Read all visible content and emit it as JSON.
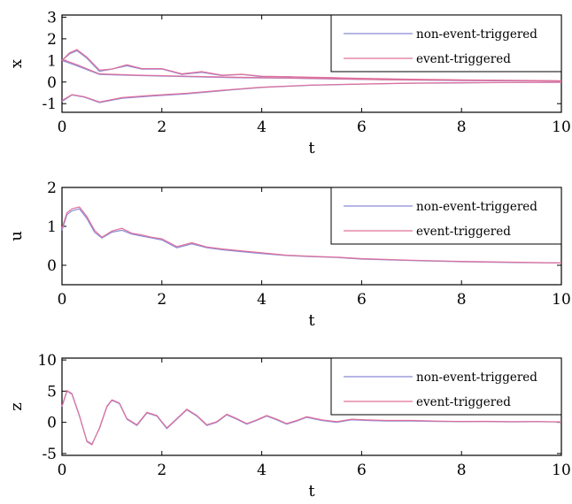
{
  "chart_data": [
    {
      "type": "line",
      "id": "x-plot",
      "xlabel": "t",
      "ylabel": "x",
      "xlim": [
        0,
        10
      ],
      "ylim": [
        -1.4,
        3.1
      ],
      "xticks": [
        "0",
        "2",
        "4",
        "6",
        "8",
        "10"
      ],
      "yticks": [
        "-1",
        "0",
        "1",
        "2",
        "3"
      ],
      "xtick_values": [
        0,
        2,
        4,
        6,
        8,
        10
      ],
      "ytick_values": [
        -1,
        0,
        1,
        2,
        3
      ],
      "grid": false,
      "legend_position": "top-right",
      "series": [
        {
          "name": "non-event-triggered",
          "color": "#8a8ad8",
          "x": [
            0,
            0.15,
            0.3,
            0.5,
            0.75,
            1.0,
            1.3,
            1.6,
            2.0,
            2.4,
            2.8,
            3.2,
            3.6,
            4.0,
            4.5,
            5.0,
            5.5,
            6.0,
            7.0,
            8.0,
            9.0,
            10.0
          ],
          "y": [
            1.0,
            1.3,
            1.45,
            1.1,
            0.5,
            0.6,
            0.75,
            0.6,
            0.6,
            0.35,
            0.45,
            0.3,
            0.35,
            0.25,
            0.25,
            0.2,
            0.18,
            0.15,
            0.12,
            0.09,
            0.07,
            0.05
          ]
        },
        {
          "name": "",
          "color": "#8a8ad8",
          "x": [
            0,
            0.3,
            0.75,
            1.5,
            2.5,
            3.5,
            4.5,
            5.5,
            6.5,
            8.0,
            10.0
          ],
          "y": [
            1.0,
            0.75,
            0.35,
            0.3,
            0.25,
            0.2,
            0.18,
            0.14,
            0.1,
            0.07,
            0.05
          ]
        },
        {
          "name": "",
          "color": "#8a8ad8",
          "x": [
            0,
            0.2,
            0.45,
            0.75,
            1.2,
            1.8,
            2.5,
            3.2,
            4.0,
            5.0,
            6.0,
            7.0,
            8.0,
            9.0,
            10.0
          ],
          "y": [
            -0.9,
            -0.6,
            -0.7,
            -0.95,
            -0.75,
            -0.65,
            -0.55,
            -0.4,
            -0.25,
            -0.15,
            -0.1,
            -0.06,
            -0.04,
            -0.02,
            -0.01
          ]
        },
        {
          "name": "event-triggered",
          "color": "#e0709a",
          "x": [
            0,
            0.15,
            0.3,
            0.5,
            0.75,
            1.0,
            1.3,
            1.6,
            2.0,
            2.4,
            2.8,
            3.2,
            3.6,
            4.0,
            4.5,
            5.0,
            5.5,
            6.0,
            7.0,
            8.0,
            9.0,
            10.0
          ],
          "y": [
            1.0,
            1.35,
            1.5,
            1.15,
            0.55,
            0.6,
            0.8,
            0.62,
            0.62,
            0.38,
            0.48,
            0.32,
            0.36,
            0.27,
            0.25,
            0.22,
            0.2,
            0.17,
            0.13,
            0.1,
            0.08,
            0.06
          ]
        },
        {
          "name": "",
          "color": "#e0709a",
          "x": [
            0,
            0.3,
            0.75,
            1.5,
            2.5,
            3.5,
            4.5,
            5.5,
            6.5,
            8.0,
            10.0
          ],
          "y": [
            1.05,
            0.8,
            0.38,
            0.32,
            0.27,
            0.22,
            0.19,
            0.15,
            0.11,
            0.08,
            0.05
          ]
        },
        {
          "name": "",
          "color": "#e0709a",
          "x": [
            0,
            0.2,
            0.45,
            0.75,
            1.2,
            1.8,
            2.5,
            3.2,
            4.0,
            5.0,
            6.0,
            7.0,
            8.0,
            9.0,
            10.0
          ],
          "y": [
            -0.85,
            -0.58,
            -0.68,
            -0.92,
            -0.72,
            -0.62,
            -0.52,
            -0.38,
            -0.24,
            -0.14,
            -0.09,
            -0.05,
            -0.03,
            -0.02,
            -0.01
          ]
        }
      ]
    },
    {
      "type": "line",
      "id": "u-plot",
      "xlabel": "t",
      "ylabel": "u",
      "xlim": [
        0,
        10
      ],
      "ylim": [
        -0.5,
        2.0
      ],
      "xticks": [
        "0",
        "2",
        "4",
        "6",
        "8",
        "10"
      ],
      "yticks": [
        "0",
        "1",
        "2"
      ],
      "xtick_values": [
        0,
        2,
        4,
        6,
        8,
        10
      ],
      "ytick_values": [
        0,
        1,
        2
      ],
      "grid": false,
      "legend_position": "top-right",
      "series": [
        {
          "name": "non-event-triggered",
          "color": "#8a8ad8",
          "x": [
            0,
            0.1,
            0.2,
            0.35,
            0.5,
            0.65,
            0.8,
            1.0,
            1.2,
            1.4,
            1.6,
            1.8,
            2.0,
            2.3,
            2.6,
            2.9,
            3.2,
            3.6,
            4.0,
            4.5,
            5.0,
            5.5,
            6.0,
            7.0,
            8.0,
            9.0,
            10.0
          ],
          "y": [
            0.9,
            1.3,
            1.4,
            1.45,
            1.2,
            0.85,
            0.7,
            0.85,
            0.9,
            0.8,
            0.75,
            0.7,
            0.65,
            0.45,
            0.55,
            0.45,
            0.4,
            0.35,
            0.3,
            0.25,
            0.22,
            0.2,
            0.16,
            0.12,
            0.09,
            0.07,
            0.06
          ]
        },
        {
          "name": "event-triggered",
          "color": "#e0709a",
          "x": [
            0,
            0.1,
            0.2,
            0.35,
            0.5,
            0.65,
            0.8,
            1.0,
            1.2,
            1.4,
            1.6,
            1.8,
            2.0,
            2.3,
            2.6,
            2.9,
            3.2,
            3.6,
            4.0,
            4.5,
            5.0,
            5.5,
            6.0,
            7.0,
            8.0,
            9.0,
            10.0
          ],
          "y": [
            0.95,
            1.35,
            1.45,
            1.5,
            1.25,
            0.9,
            0.72,
            0.88,
            0.95,
            0.82,
            0.78,
            0.72,
            0.68,
            0.48,
            0.58,
            0.47,
            0.42,
            0.37,
            0.32,
            0.26,
            0.23,
            0.21,
            0.17,
            0.13,
            0.1,
            0.08,
            0.06
          ]
        }
      ]
    },
    {
      "type": "line",
      "id": "z-plot",
      "xlabel": "t",
      "ylabel": "z",
      "xlim": [
        0,
        10
      ],
      "ylim": [
        -5.3,
        10.3
      ],
      "xticks": [
        "0",
        "2",
        "4",
        "6",
        "8",
        "10"
      ],
      "yticks": [
        "-5",
        "0",
        "5",
        "10"
      ],
      "xtick_values": [
        0,
        2,
        4,
        6,
        8,
        10
      ],
      "ytick_values": [
        -5,
        0,
        5,
        10
      ],
      "grid": false,
      "legend_position": "top-right",
      "series": [
        {
          "name": "non-event-triggered",
          "color": "#8a8ad8",
          "x": [
            0,
            0.1,
            0.2,
            0.35,
            0.5,
            0.6,
            0.75,
            0.9,
            1.0,
            1.15,
            1.3,
            1.5,
            1.7,
            1.9,
            2.1,
            2.3,
            2.5,
            2.7,
            2.9,
            3.1,
            3.3,
            3.5,
            3.7,
            3.9,
            4.1,
            4.3,
            4.5,
            4.7,
            4.9,
            5.2,
            5.5,
            5.8,
            6.1,
            6.5,
            7.0,
            7.5,
            8.0,
            8.5,
            9.0,
            9.5,
            10.0
          ],
          "y": [
            2.5,
            5.0,
            4.5,
            1.0,
            -3.0,
            -3.5,
            -1.0,
            2.5,
            3.5,
            3.0,
            0.5,
            -0.5,
            1.5,
            1.0,
            -1.0,
            0.5,
            2.0,
            1.0,
            -0.5,
            0.0,
            1.2,
            0.5,
            -0.3,
            0.3,
            1.0,
            0.4,
            -0.3,
            0.2,
            0.8,
            0.3,
            0.0,
            0.4,
            0.3,
            0.2,
            0.2,
            0.15,
            0.1,
            0.12,
            0.08,
            0.1,
            0.05
          ]
        },
        {
          "name": "event-triggered",
          "color": "#e0709a",
          "x": [
            0,
            0.1,
            0.2,
            0.35,
            0.5,
            0.6,
            0.75,
            0.9,
            1.0,
            1.15,
            1.3,
            1.5,
            1.7,
            1.9,
            2.1,
            2.3,
            2.5,
            2.7,
            2.9,
            3.1,
            3.3,
            3.5,
            3.7,
            3.9,
            4.1,
            4.3,
            4.5,
            4.7,
            4.9,
            5.2,
            5.5,
            5.8,
            6.1,
            6.5,
            7.0,
            7.5,
            8.0,
            8.5,
            9.0,
            9.5,
            10.0
          ],
          "y": [
            2.6,
            5.1,
            4.6,
            1.1,
            -3.1,
            -3.6,
            -0.9,
            2.6,
            3.6,
            3.1,
            0.6,
            -0.4,
            1.6,
            1.1,
            -0.9,
            0.6,
            2.1,
            1.1,
            -0.4,
            0.1,
            1.3,
            0.6,
            -0.2,
            0.4,
            1.1,
            0.5,
            -0.2,
            0.3,
            0.9,
            0.4,
            0.1,
            0.5,
            0.4,
            0.3,
            0.3,
            0.2,
            0.15,
            0.16,
            0.12,
            0.13,
            0.08
          ]
        }
      ]
    }
  ]
}
